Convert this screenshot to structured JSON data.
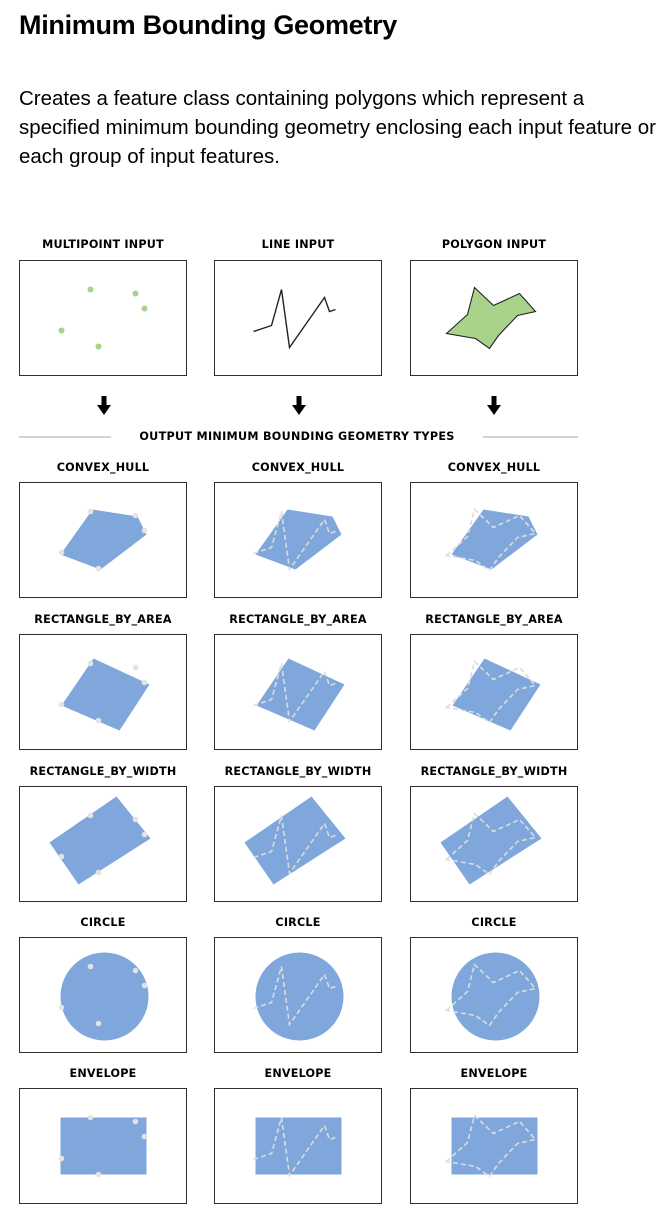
{
  "title": "Minimum Bounding Geometry",
  "description": "Creates a feature class containing polygons which represent a specified minimum bounding geometry enclosing each input feature or each group of input features.",
  "inputs": [
    {
      "label": "MULTIPOINT INPUT",
      "icon": "multipoint-input-icon"
    },
    {
      "label": "LINE INPUT",
      "icon": "line-input-icon"
    },
    {
      "label": "POLYGON INPUT",
      "icon": "polygon-input-icon"
    }
  ],
  "separator_label": "OUTPUT MINIMUM BOUNDING GEOMETRY TYPES",
  "output_types": [
    {
      "label": "CONVEX_HULL",
      "icon": "convex-hull-icon"
    },
    {
      "label": "RECTANGLE_BY_AREA",
      "icon": "rectangle-by-area-icon"
    },
    {
      "label": "RECTANGLE_BY_WIDTH",
      "icon": "rectangle-by-width-icon"
    },
    {
      "label": "CIRCLE",
      "icon": "circle-icon"
    },
    {
      "label": "ENVELOPE",
      "icon": "envelope-icon"
    }
  ],
  "colors": {
    "point_fill": "#a9d28b",
    "polygon_fill": "#a9d28b",
    "output_fill": "#7fa7dc",
    "output_vertex": "#e3e3e3",
    "outline": "#2f2f2f",
    "divider": "#d4d4d4"
  }
}
